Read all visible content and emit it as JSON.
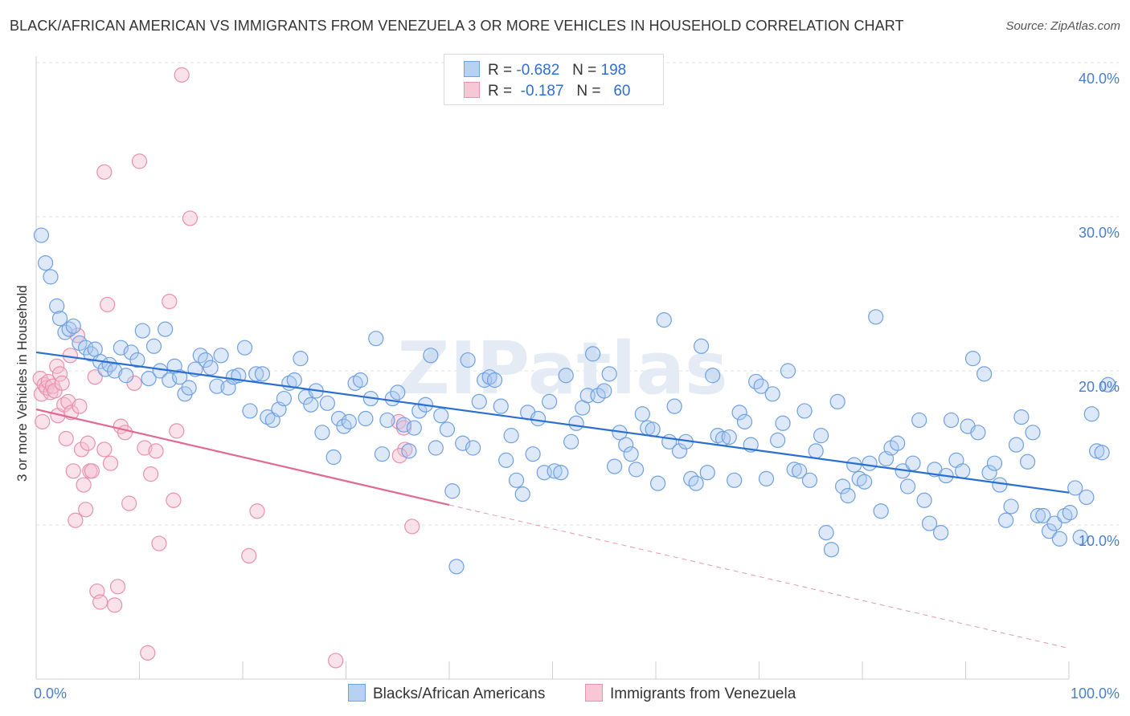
{
  "title": "BLACK/AFRICAN AMERICAN VS IMMIGRANTS FROM VENEZUELA 3 OR MORE VEHICLES IN HOUSEHOLD CORRELATION CHART",
  "source": "Source: ZipAtlas.com",
  "watermark": "ZIPatlas",
  "colors": {
    "blue": "#6fa0e0",
    "blue_fill": "#a9c8f0",
    "blue_line": "#2a6fd0",
    "pink": "#e890ae",
    "pink_fill": "#f5bfd0",
    "pink_line": "#e06a93",
    "tick": "#4a7fc8"
  },
  "legend": {
    "rows": [
      {
        "r_label": "R =",
        "r_value": "-0.682",
        "n_label": "N =",
        "n_value": "198"
      },
      {
        "r_label": "R =",
        "r_value": "-0.187",
        "n_label": "N =",
        "n_value": "60"
      }
    ]
  },
  "chart_data": {
    "type": "scatter",
    "title": "BLACK/AFRICAN AMERICAN VS IMMIGRANTS FROM VENEZUELA 3 OR MORE VEHICLES IN HOUSEHOLD CORRELATION CHART",
    "xlabel": "",
    "ylabel": "3 or more Vehicles in Household",
    "xlim": [
      0,
      100
    ],
    "ylim": [
      0,
      41
    ],
    "x_tick_labels": [
      "0.0%",
      "100.0%"
    ],
    "y_ticks": [
      10,
      20,
      30,
      40
    ],
    "y_tick_labels": [
      "10.0%",
      "20.0%",
      "30.0%",
      "40.0%"
    ],
    "grid": true,
    "legend_position": "top-center",
    "series": [
      {
        "name": "Blacks/African Americans",
        "trend": {
          "x": [
            0,
            100
          ],
          "y": [
            21.2,
            12.1
          ]
        },
        "points": [
          [
            0.5,
            28.8
          ],
          [
            0.9,
            27.0
          ],
          [
            1.4,
            26.1
          ],
          [
            2.0,
            24.2
          ],
          [
            2.3,
            23.4
          ],
          [
            2.8,
            22.5
          ],
          [
            3.2,
            22.7
          ],
          [
            3.6,
            22.9
          ],
          [
            4.2,
            21.8
          ],
          [
            4.8,
            21.5
          ],
          [
            5.3,
            21.1
          ],
          [
            5.7,
            21.4
          ],
          [
            6.2,
            20.6
          ],
          [
            6.7,
            20.1
          ],
          [
            7.1,
            20.4
          ],
          [
            7.6,
            20.0
          ],
          [
            8.2,
            21.5
          ],
          [
            8.7,
            19.7
          ],
          [
            9.2,
            21.2
          ],
          [
            9.8,
            20.7
          ],
          [
            10.3,
            22.6
          ],
          [
            10.9,
            19.5
          ],
          [
            11.4,
            21.6
          ],
          [
            12.0,
            20.0
          ],
          [
            12.5,
            22.7
          ],
          [
            12.9,
            19.4
          ],
          [
            13.4,
            20.3
          ],
          [
            13.9,
            19.6
          ],
          [
            14.4,
            18.5
          ],
          [
            14.8,
            18.9
          ],
          [
            15.4,
            20.1
          ],
          [
            15.9,
            21.0
          ],
          [
            16.4,
            20.7
          ],
          [
            16.9,
            20.2
          ],
          [
            17.5,
            19.0
          ],
          [
            17.9,
            21.0
          ],
          [
            18.6,
            18.9
          ],
          [
            19.1,
            19.6
          ],
          [
            19.6,
            19.7
          ],
          [
            20.2,
            21.5
          ],
          [
            20.7,
            17.4
          ],
          [
            21.3,
            19.8
          ],
          [
            21.9,
            19.8
          ],
          [
            22.4,
            17.0
          ],
          [
            22.9,
            16.8
          ],
          [
            23.5,
            17.5
          ],
          [
            24.0,
            18.2
          ],
          [
            24.5,
            19.2
          ],
          [
            25.0,
            19.4
          ],
          [
            25.6,
            20.8
          ],
          [
            26.1,
            18.3
          ],
          [
            26.6,
            17.8
          ],
          [
            27.1,
            18.7
          ],
          [
            27.7,
            16.0
          ],
          [
            28.2,
            17.9
          ],
          [
            28.8,
            14.4
          ],
          [
            29.3,
            16.9
          ],
          [
            29.8,
            16.4
          ],
          [
            30.3,
            16.7
          ],
          [
            30.9,
            19.2
          ],
          [
            31.4,
            19.4
          ],
          [
            31.9,
            16.9
          ],
          [
            32.4,
            18.2
          ],
          [
            32.9,
            22.1
          ],
          [
            33.5,
            14.6
          ],
          [
            34.0,
            16.8
          ],
          [
            34.5,
            18.2
          ],
          [
            35.0,
            18.6
          ],
          [
            35.6,
            16.5
          ],
          [
            36.1,
            14.8
          ],
          [
            36.6,
            16.3
          ],
          [
            37.1,
            17.4
          ],
          [
            37.7,
            17.8
          ],
          [
            38.2,
            21.0
          ],
          [
            38.7,
            15.0
          ],
          [
            39.2,
            17.1
          ],
          [
            39.8,
            16.2
          ],
          [
            40.3,
            12.2
          ],
          [
            40.7,
            7.3
          ],
          [
            41.3,
            15.3
          ],
          [
            41.8,
            20.7
          ],
          [
            42.3,
            15.0
          ],
          [
            42.9,
            18.0
          ],
          [
            43.4,
            19.4
          ],
          [
            43.9,
            19.6
          ],
          [
            44.4,
            19.4
          ],
          [
            45.0,
            17.7
          ],
          [
            45.5,
            14.2
          ],
          [
            46.0,
            15.8
          ],
          [
            46.5,
            12.9
          ],
          [
            47.1,
            12.0
          ],
          [
            47.6,
            17.3
          ],
          [
            48.1,
            14.6
          ],
          [
            48.6,
            16.9
          ],
          [
            49.2,
            13.4
          ],
          [
            49.7,
            18.0
          ],
          [
            50.2,
            13.5
          ],
          [
            50.8,
            13.4
          ],
          [
            51.3,
            19.7
          ],
          [
            51.8,
            15.4
          ],
          [
            52.3,
            16.6
          ],
          [
            52.9,
            17.6
          ],
          [
            53.4,
            18.4
          ],
          [
            53.9,
            21.1
          ],
          [
            54.4,
            18.4
          ],
          [
            55.0,
            18.7
          ],
          [
            55.5,
            19.8
          ],
          [
            56.0,
            13.8
          ],
          [
            56.5,
            16.0
          ],
          [
            57.1,
            15.2
          ],
          [
            57.6,
            14.6
          ],
          [
            58.1,
            13.6
          ],
          [
            58.7,
            17.2
          ],
          [
            59.2,
            16.3
          ],
          [
            59.7,
            16.2
          ],
          [
            60.2,
            12.7
          ],
          [
            60.8,
            23.3
          ],
          [
            61.3,
            15.4
          ],
          [
            61.8,
            17.7
          ],
          [
            62.3,
            14.8
          ],
          [
            62.9,
            15.4
          ],
          [
            63.4,
            13.0
          ],
          [
            63.9,
            12.7
          ],
          [
            64.4,
            21.6
          ],
          [
            65.0,
            13.4
          ],
          [
            65.5,
            19.7
          ],
          [
            66.0,
            15.8
          ],
          [
            66.5,
            15.6
          ],
          [
            67.1,
            15.7
          ],
          [
            67.6,
            12.9
          ],
          [
            68.1,
            17.3
          ],
          [
            68.6,
            16.7
          ],
          [
            69.2,
            15.2
          ],
          [
            69.7,
            19.3
          ],
          [
            70.2,
            19.0
          ],
          [
            70.7,
            13.0
          ],
          [
            71.3,
            18.5
          ],
          [
            71.8,
            15.5
          ],
          [
            72.3,
            16.6
          ],
          [
            72.8,
            20.0
          ],
          [
            73.4,
            13.6
          ],
          [
            73.9,
            13.5
          ],
          [
            74.4,
            17.4
          ],
          [
            74.9,
            12.9
          ],
          [
            75.5,
            14.8
          ],
          [
            76.0,
            15.8
          ],
          [
            76.5,
            9.5
          ],
          [
            77.0,
            8.4
          ],
          [
            77.6,
            18.0
          ],
          [
            78.1,
            12.5
          ],
          [
            78.6,
            11.9
          ],
          [
            79.2,
            13.9
          ],
          [
            79.7,
            13.0
          ],
          [
            80.2,
            12.8
          ],
          [
            80.7,
            14.0
          ],
          [
            81.3,
            23.5
          ],
          [
            81.8,
            10.9
          ],
          [
            82.3,
            14.3
          ],
          [
            82.8,
            15.0
          ],
          [
            83.4,
            15.3
          ],
          [
            83.9,
            13.5
          ],
          [
            84.4,
            12.5
          ],
          [
            84.9,
            14.0
          ],
          [
            85.5,
            16.8
          ],
          [
            86.0,
            11.6
          ],
          [
            86.5,
            10.1
          ],
          [
            87.0,
            13.6
          ],
          [
            87.6,
            9.5
          ],
          [
            88.1,
            13.2
          ],
          [
            88.6,
            16.8
          ],
          [
            89.1,
            14.2
          ],
          [
            89.7,
            13.5
          ],
          [
            90.2,
            16.4
          ],
          [
            90.7,
            20.8
          ],
          [
            91.2,
            16.0
          ],
          [
            91.8,
            19.8
          ],
          [
            92.3,
            13.4
          ],
          [
            92.8,
            14.0
          ],
          [
            93.3,
            12.6
          ],
          [
            93.9,
            10.3
          ],
          [
            94.4,
            11.2
          ],
          [
            94.9,
            15.2
          ],
          [
            95.4,
            17.0
          ],
          [
            96.0,
            14.1
          ],
          [
            96.5,
            16.0
          ],
          [
            97.0,
            10.6
          ],
          [
            97.5,
            10.6
          ],
          [
            98.1,
            9.6
          ],
          [
            98.6,
            10.1
          ],
          [
            99.1,
            9.1
          ],
          [
            99.6,
            10.6
          ],
          [
            100.1,
            10.8
          ],
          [
            100.6,
            12.4
          ],
          [
            101.1,
            9.2
          ],
          [
            101.7,
            11.8
          ],
          [
            102.2,
            17.2
          ],
          [
            102.7,
            14.8
          ],
          [
            103.2,
            14.7
          ],
          [
            103.8,
            19.1
          ]
        ]
      },
      {
        "name": "Immigrants from Venezuela",
        "trend": {
          "x": [
            0,
            40
          ],
          "y": [
            17.5,
            11.3
          ]
        },
        "trend_dashed": {
          "x": [
            40,
            100
          ],
          "y": [
            11.3,
            2.0
          ]
        },
        "points": [
          [
            0.4,
            19.5
          ],
          [
            0.5,
            18.5
          ],
          [
            0.6,
            16.7
          ],
          [
            0.8,
            19.1
          ],
          [
            1.0,
            18.9
          ],
          [
            1.2,
            19.3
          ],
          [
            1.4,
            18.6
          ],
          [
            1.6,
            19.0
          ],
          [
            1.8,
            18.7
          ],
          [
            2.0,
            20.3
          ],
          [
            2.1,
            17.1
          ],
          [
            2.3,
            19.8
          ],
          [
            2.5,
            19.2
          ],
          [
            2.7,
            17.8
          ],
          [
            2.9,
            15.6
          ],
          [
            3.1,
            18.0
          ],
          [
            3.3,
            21.0
          ],
          [
            3.4,
            17.3
          ],
          [
            3.6,
            13.5
          ],
          [
            3.8,
            10.3
          ],
          [
            4.0,
            22.3
          ],
          [
            4.2,
            17.7
          ],
          [
            4.4,
            14.9
          ],
          [
            4.6,
            12.6
          ],
          [
            4.8,
            11.0
          ],
          [
            5.0,
            15.3
          ],
          [
            5.2,
            13.5
          ],
          [
            5.4,
            13.5
          ],
          [
            5.7,
            19.6
          ],
          [
            5.9,
            5.7
          ],
          [
            6.2,
            5.0
          ],
          [
            6.6,
            14.9
          ],
          [
            6.9,
            24.3
          ],
          [
            7.2,
            14.0
          ],
          [
            7.6,
            4.8
          ],
          [
            7.9,
            6.0
          ],
          [
            8.2,
            16.4
          ],
          [
            8.6,
            16.0
          ],
          [
            9.0,
            11.4
          ],
          [
            9.5,
            19.2
          ],
          [
            10.0,
            33.6
          ],
          [
            10.5,
            15.0
          ],
          [
            10.8,
            1.7
          ],
          [
            11.1,
            13.3
          ],
          [
            11.6,
            14.8
          ],
          [
            11.9,
            8.8
          ],
          [
            12.9,
            24.5
          ],
          [
            13.3,
            11.6
          ],
          [
            13.6,
            16.1
          ],
          [
            14.1,
            39.2
          ],
          [
            14.9,
            29.9
          ],
          [
            6.6,
            32.9
          ],
          [
            20.6,
            8.0
          ],
          [
            21.4,
            10.9
          ],
          [
            29.0,
            1.2
          ],
          [
            35.1,
            16.7
          ],
          [
            35.6,
            16.3
          ],
          [
            35.7,
            14.9
          ],
          [
            36.4,
            9.9
          ],
          [
            35.2,
            14.5
          ]
        ]
      }
    ]
  },
  "bottom_legend": [
    {
      "label": "Blacks/African Americans"
    },
    {
      "label": "Immigrants from Venezuela"
    }
  ]
}
